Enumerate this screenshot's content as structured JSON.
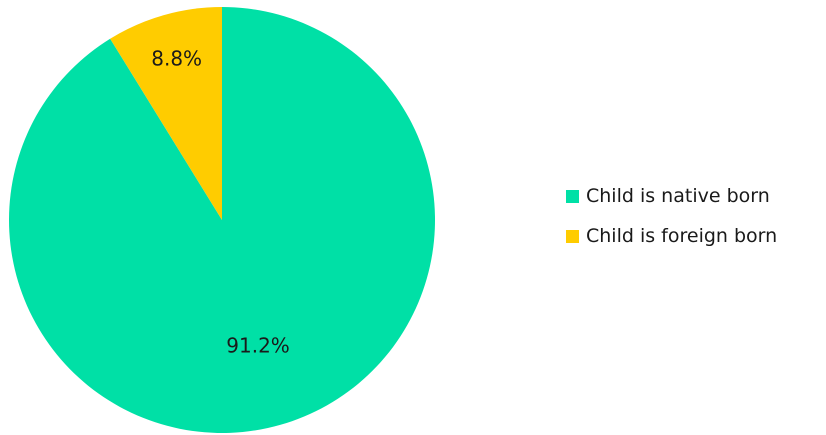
{
  "chart_data": {
    "type": "pie",
    "series": [
      {
        "name": "Child is native born",
        "value": 91.2,
        "label": "91.2%",
        "color": "#00e0a6"
      },
      {
        "name": "Child is foreign born",
        "value": 8.8,
        "label": "8.8%",
        "color": "#ffcc00"
      }
    ],
    "legend_position": "right",
    "start_angle": "12 o'clock",
    "direction": "counter-clockwise for second slice"
  }
}
